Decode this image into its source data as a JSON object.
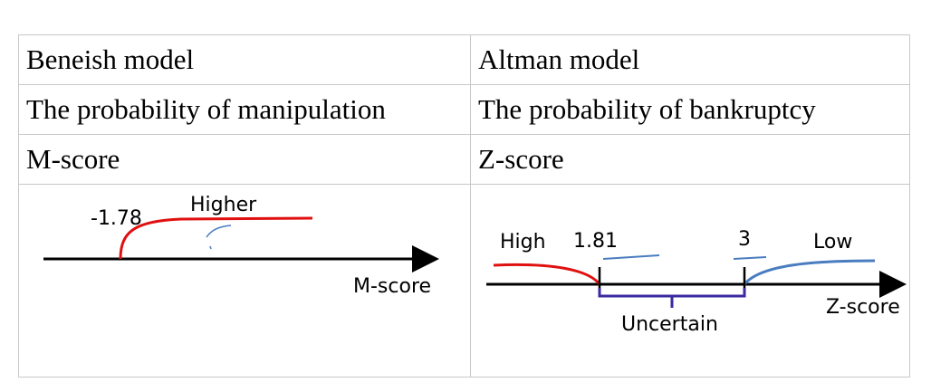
{
  "table": {
    "rows": [
      [
        "Beneish model",
        "Altman model"
      ],
      [
        "The probability of manipulation",
        "The probability of bankruptcy"
      ],
      [
        "M-score",
        "Z-score"
      ]
    ]
  },
  "diagrams": {
    "left": {
      "threshold": "-1.78",
      "zone": "Higher",
      "axis": "M-score"
    },
    "right": {
      "high": "High",
      "lower_threshold": "1.81",
      "upper_threshold": "3",
      "low": "Low",
      "axis": "Z-score",
      "middle": "Uncertain"
    }
  }
}
